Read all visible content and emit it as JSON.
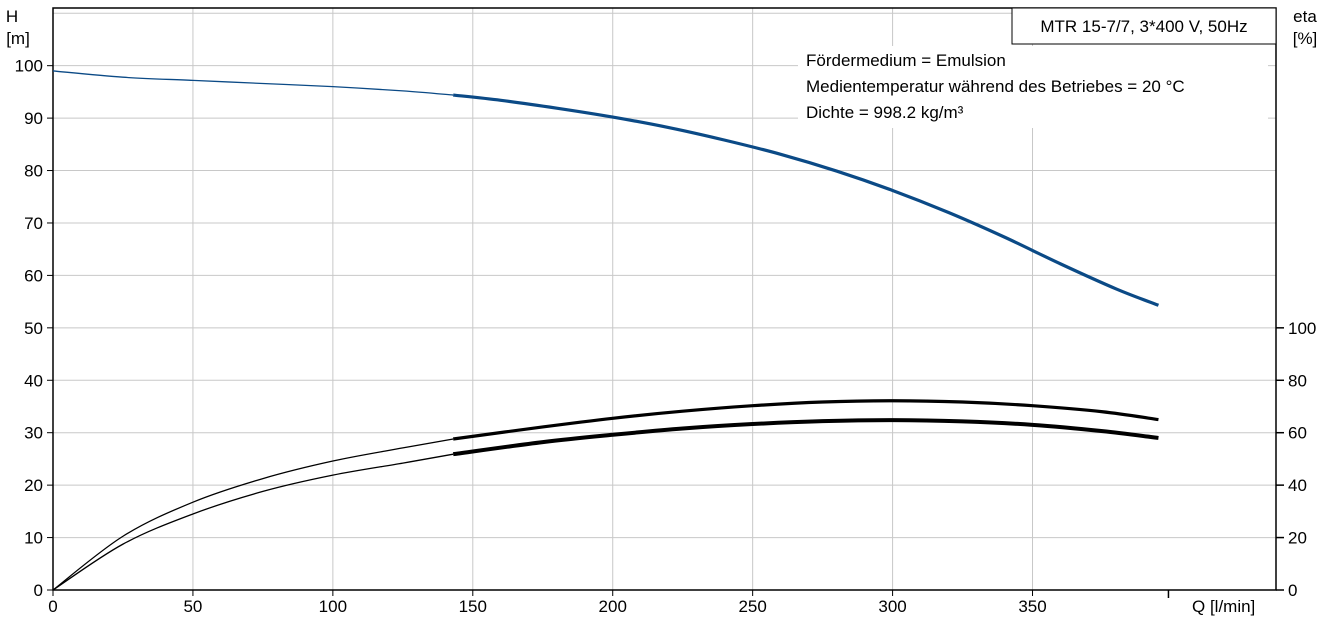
{
  "chart_data": {
    "type": "line",
    "title": "MTR 15-7/7, 3*400 V, 50Hz",
    "annotations": [
      "Fördermedium = Emulsion",
      "Medientemperatur während des Betriebes = 20 °C",
      "Dichte = 998.2 kg/m³"
    ],
    "xlabel": "Q [l/min]",
    "ylabel_left": [
      "H",
      "[m]"
    ],
    "ylabel_right": [
      "eta",
      "[%]"
    ],
    "xlim": [
      0,
      437
    ],
    "ylim_left": [
      0,
      111
    ],
    "ylim_right": [
      0,
      222
    ],
    "x_ticks": [
      0,
      50,
      100,
      150,
      200,
      250,
      300,
      350
    ],
    "y_ticks_left": [
      0,
      10,
      20,
      30,
      40,
      50,
      60,
      70,
      80,
      90,
      100
    ],
    "y_ticks_right": [
      0,
      20,
      40,
      60,
      80,
      100
    ],
    "grid": true,
    "series": [
      {
        "name": "",
        "axis": "left",
        "color": "#0b4a86",
        "x": [
          0,
          25,
          50,
          75,
          100,
          125,
          143,
          160,
          180,
          200,
          220,
          240,
          260,
          280,
          300,
          320,
          340,
          360,
          380,
          395
        ],
        "values": [
          99,
          97.8,
          97.2,
          96.6,
          96.0,
          95.2,
          94.4,
          93.4,
          91.9,
          90.2,
          88.2,
          85.8,
          83.1,
          79.9,
          76.2,
          72.0,
          67.3,
          62.2,
          57.4,
          54.3
        ],
        "thick_from_x": 143
      },
      {
        "name": "",
        "axis": "right",
        "color": "#000000",
        "x": [
          0,
          25,
          50,
          75,
          100,
          125,
          143,
          175,
          200,
          225,
          250,
          275,
          300,
          325,
          350,
          375,
          395
        ],
        "values": [
          0,
          20.5,
          33.5,
          42.5,
          49.2,
          54.2,
          57.6,
          62.2,
          65.5,
          68.2,
          70.3,
          71.7,
          72.2,
          71.7,
          70.3,
          68.0,
          65.0
        ],
        "thick_from_x": 143
      },
      {
        "name": "",
        "axis": "right",
        "color": "#000000",
        "x": [
          0,
          25,
          50,
          75,
          100,
          125,
          143,
          175,
          200,
          225,
          250,
          275,
          300,
          325,
          350,
          375,
          395
        ],
        "values": [
          0,
          17.5,
          29.0,
          37.6,
          43.8,
          48.4,
          51.8,
          56.4,
          59.2,
          61.6,
          63.3,
          64.4,
          64.8,
          64.3,
          63.0,
          60.6,
          58.0
        ],
        "thick_from_x": 143
      }
    ]
  }
}
